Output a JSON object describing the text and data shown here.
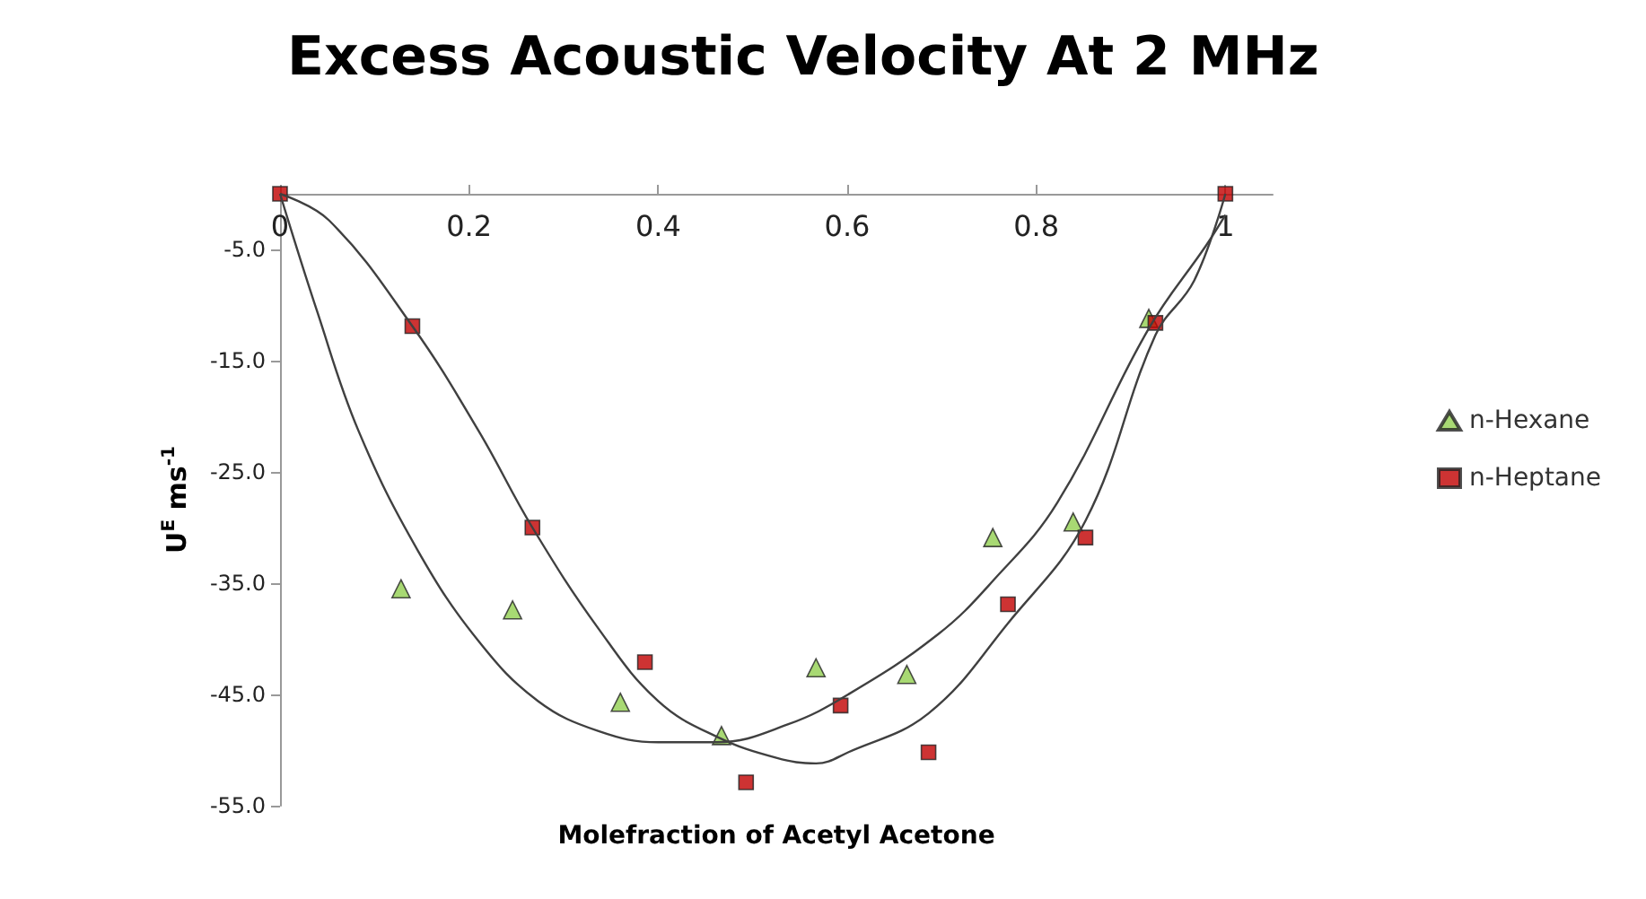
{
  "chart_data": {
    "type": "scatter",
    "title": "Excess Acoustic Velocity At 2 MHz",
    "xlabel": "Molefraction of Acetyl Acetone",
    "ylabel": "U$^{E}$ ms$^{-1}$",
    "xlim": [
      0,
      1.05
    ],
    "xticks": [
      0,
      0.2,
      0.4,
      0.6,
      0.8,
      1
    ],
    "ylim": [
      -55,
      0
    ],
    "yticks": [
      {
        "value": -55,
        "label": "-55.0"
      },
      {
        "value": -45,
        "label": "-45.0"
      },
      {
        "value": -35,
        "label": "-35.0"
      },
      {
        "value": -25,
        "label": "-25.0"
      },
      {
        "value": -15,
        "label": "-15.0"
      },
      {
        "value": -5,
        "label": "-5.0"
      }
    ],
    "grid": false,
    "legend": "right",
    "series": [
      {
        "name": "n-Hexane",
        "marker": "triangle",
        "color": "#92d050",
        "x": [
          0.128,
          0.246,
          0.36,
          0.467,
          0.567,
          0.663,
          0.754,
          0.839,
          0.919
        ],
        "values": [
          -35.5,
          -37.4,
          -45.7,
          -48.7,
          -42.6,
          -43.2,
          -30.9,
          -29.5,
          -11.2
        ]
      },
      {
        "name": "n-Heptane",
        "marker": "square",
        "color": "#c00000",
        "x": [
          0,
          0.14,
          0.267,
          0.386,
          0.493,
          0.593,
          0.686,
          0.77,
          0.852,
          0.926,
          1
        ],
        "values": [
          0,
          -11.9,
          -30.0,
          -42.1,
          -52.9,
          -46.0,
          -50.2,
          -36.9,
          -30.9,
          -11.6,
          0
        ]
      },
      {
        "type": "line",
        "marker": "none",
        "color": "#404040",
        "x": [
          0,
          0.039,
          0.083,
          0.146,
          0.21,
          0.273,
          0.337,
          0.4,
          0.462,
          0.537,
          0.601,
          0.696,
          0.754,
          0.822,
          0.919,
          0.98,
          1
        ],
        "values": [
          0,
          -10.5,
          -21.3,
          -32.1,
          -40.2,
          -45.6,
          -48.3,
          -49.3,
          -49.3,
          -47.7,
          -45.0,
          -39.6,
          -34.8,
          -27.8,
          -12.1,
          -4.6,
          -1.9
        ]
      },
      {
        "type": "line",
        "marker": "none",
        "color": "#404040",
        "x": [
          0,
          0.052,
          0.14,
          0.21,
          0.267,
          0.337,
          0.4,
          0.462,
          0.525,
          0.567,
          0.601,
          0.686,
          0.77,
          0.852,
          0.926,
          0.967,
          1
        ],
        "values": [
          0,
          -2.4,
          -11.9,
          -21.3,
          -30.0,
          -39.1,
          -45.6,
          -48.8,
          -50.7,
          -51.2,
          -50.2,
          -46.7,
          -38.6,
          -29.4,
          -12.7,
          -7.8,
          0
        ]
      }
    ]
  }
}
